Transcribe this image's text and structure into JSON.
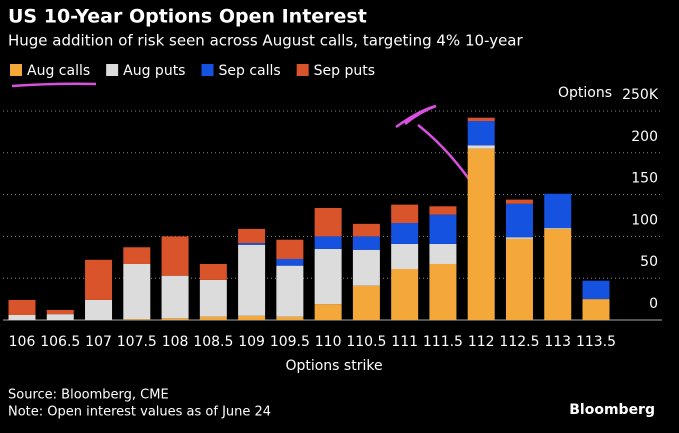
{
  "chart_data": {
    "type": "stacked_bar",
    "title": "US 10-Year Options Open Interest",
    "subtitle": "Huge addition of risk seen across August calls, targeting 4% 10-year",
    "y_label": "Options",
    "x_label": "Options strike",
    "source": "Source: Bloomberg, CME",
    "note": "Note: Open interest values as of June 24",
    "brand": "Bloomberg",
    "categories": [
      "106",
      "106.5",
      "107",
      "107.5",
      "108",
      "108.5",
      "109",
      "109.5",
      "110",
      "110.5",
      "111",
      "111.5",
      "112",
      "112.5",
      "113",
      "113.5"
    ],
    "series": [
      {
        "name": "Aug calls",
        "color": "#f5a83a",
        "values": [
          0,
          0,
          0,
          1,
          2,
          4,
          5,
          4,
          19,
          41,
          61,
          67,
          205,
          97,
          109,
          25
        ]
      },
      {
        "name": "Aug puts",
        "color": "#dcdcdc",
        "values": [
          6,
          7,
          24,
          66,
          51,
          44,
          85,
          61,
          66,
          43,
          30,
          24,
          4,
          2,
          1,
          0
        ]
      },
      {
        "name": "Sep calls",
        "color": "#1552e0",
        "values": [
          0,
          0,
          0,
          0,
          0,
          0,
          2,
          8,
          15,
          16,
          25,
          35,
          29,
          40,
          41,
          22
        ]
      },
      {
        "name": "Sep puts",
        "color": "#d9542a",
        "values": [
          18,
          5,
          48,
          20,
          47,
          19,
          17,
          23,
          34,
          15,
          22,
          10,
          4,
          5,
          0,
          0
        ]
      }
    ],
    "ylim": [
      0,
      250
    ],
    "yticks": [
      0,
      50,
      100,
      150,
      200,
      {
        "value": 250,
        "label": "250K"
      }
    ],
    "grid": true
  }
}
